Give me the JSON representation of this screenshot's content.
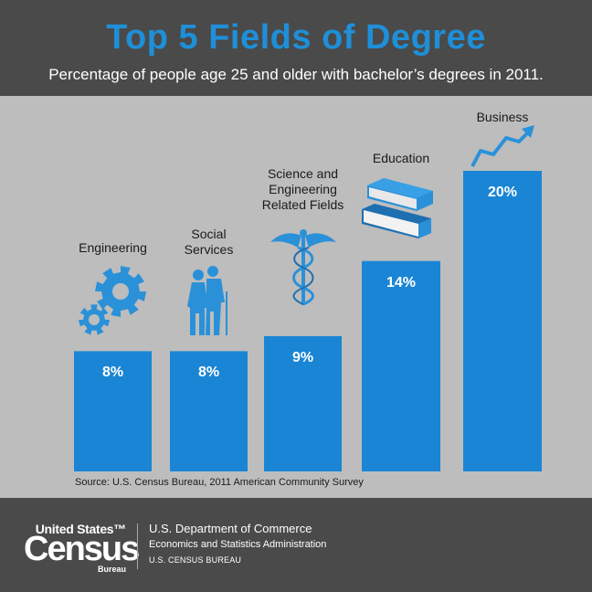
{
  "header": {
    "title": "Top 5 Fields of Degree",
    "subtitle": "Percentage of people age 25 and older with bachelor’s degrees in 2011."
  },
  "chart_data": {
    "type": "bar",
    "title": "Top 5 Fields of Degree",
    "subtitle": "Percentage of people age 25 and older with bachelor’s degrees in 2011.",
    "categories": [
      "Engineering",
      "Social Services",
      "Science and Engineering Related Fields",
      "Education",
      "Business"
    ],
    "category_lines": [
      [
        "Engineering"
      ],
      [
        "Social",
        "Services"
      ],
      [
        "Science and",
        "Engineering",
        "Related Fields"
      ],
      [
        "Education"
      ],
      [
        "Business"
      ]
    ],
    "values": [
      8,
      8,
      9,
      14,
      20
    ],
    "value_labels": [
      "8%",
      "8%",
      "9%",
      "14%",
      "20%"
    ],
    "unit": "%",
    "ylim": [
      0,
      22
    ],
    "grid": false,
    "legend": "none",
    "colors": {
      "bar": "#1a85d4",
      "background": "#bdbdbd",
      "icon": "#2a91d9",
      "icon_dark": "#1e6fb0"
    },
    "icons": [
      "gears-icon",
      "elderly-couple-icon",
      "caduceus-icon",
      "books-icon",
      "trend-arrow-icon"
    ]
  },
  "source": "Source: U.S. Census Bureau, 2011 American Community Survey",
  "footer": {
    "logo_top": "United States™",
    "logo_main": "Census",
    "logo_bottom": "Bureau",
    "dept": "U.S. Department of Commerce",
    "admin": "Economics and Statistics Administration",
    "bureau": "U.S. CENSUS BUREAU"
  }
}
